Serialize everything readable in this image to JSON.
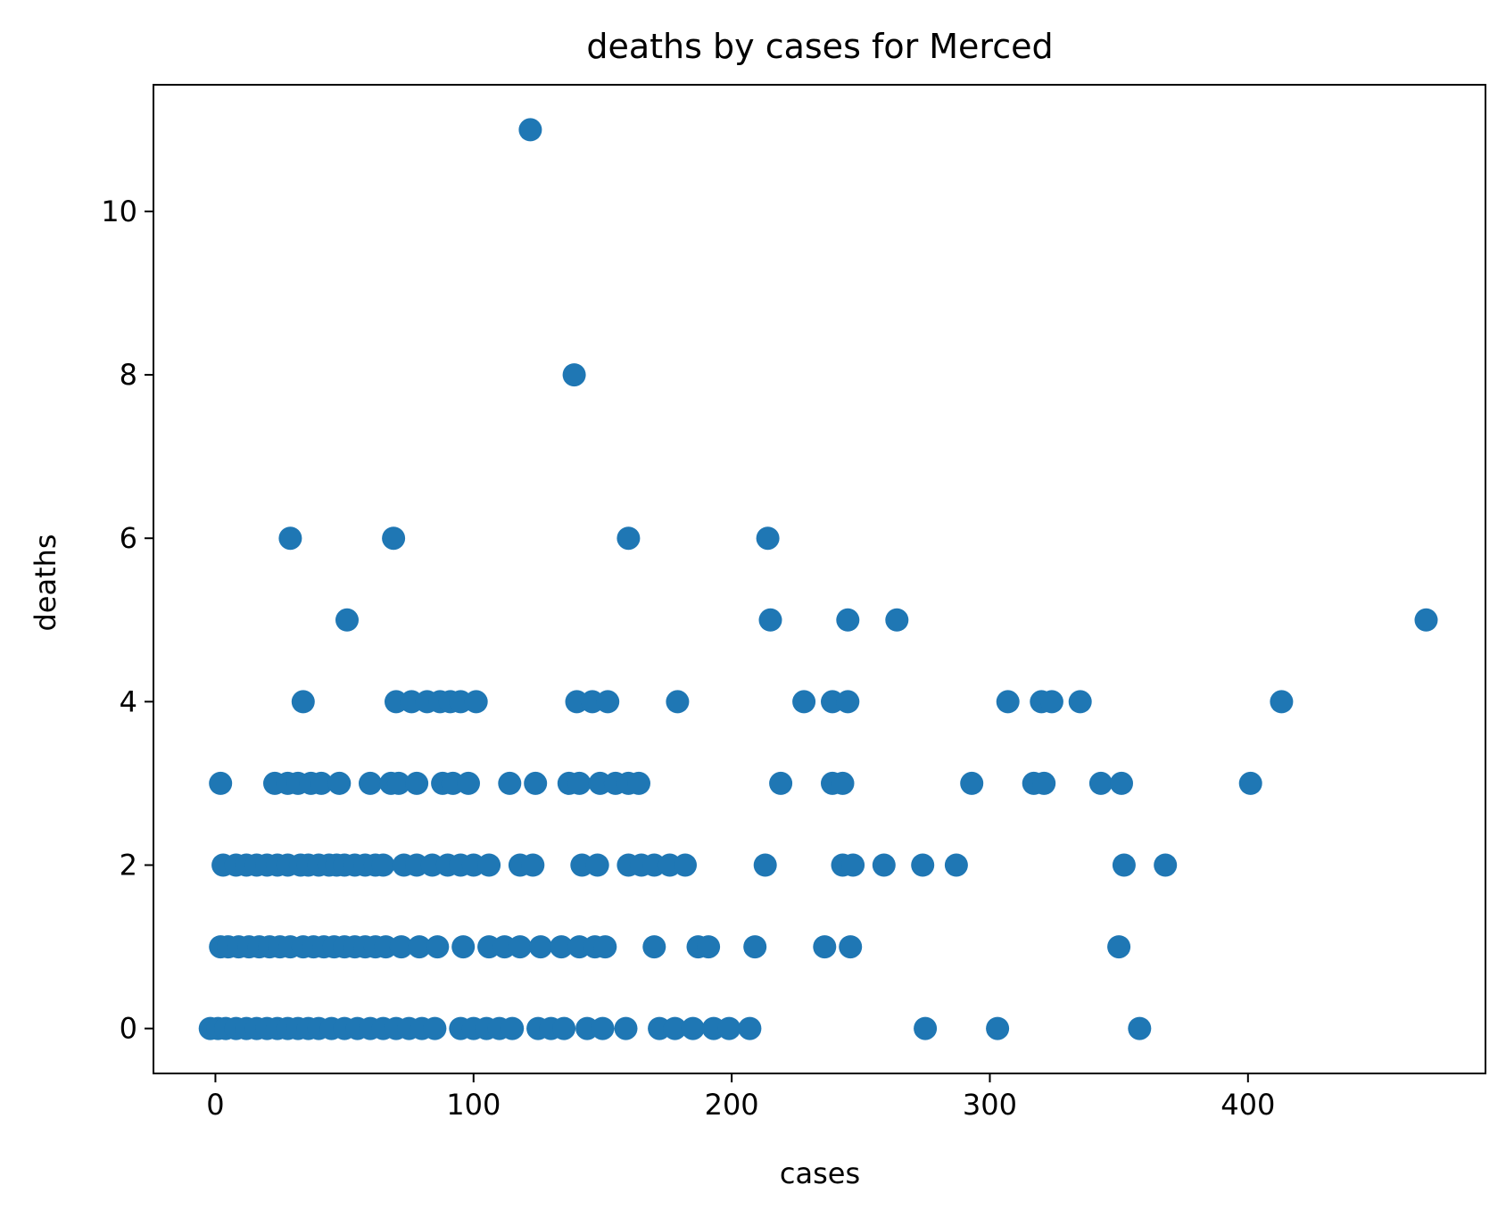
{
  "chart_data": {
    "type": "scatter",
    "title": "deaths by cases for Merced",
    "xlabel": "cases",
    "ylabel": "deaths",
    "xlim": [
      -24,
      492
    ],
    "ylim": [
      -0.55,
      11.55
    ],
    "xticks": [
      0,
      100,
      200,
      300,
      400
    ],
    "yticks": [
      0,
      2,
      4,
      6,
      8,
      10
    ],
    "grid": false,
    "legend": "none",
    "colors": {
      "marker": "#1f77b4",
      "frame": "#000000",
      "background": "#ffffff"
    },
    "series": [
      {
        "x": [
          122,
          139,
          29,
          69,
          160,
          214,
          51,
          215,
          245,
          264,
          469,
          34,
          70,
          76,
          82,
          87,
          91,
          95,
          101,
          140,
          146,
          152,
          179,
          228,
          239,
          245,
          307,
          320,
          324,
          335,
          413,
          2,
          23,
          28,
          32,
          37,
          41,
          48,
          60,
          68,
          71,
          78,
          88,
          92,
          98,
          114,
          124,
          137,
          141,
          149,
          155,
          160,
          164,
          219,
          239,
          243,
          293,
          317,
          321,
          343,
          351,
          401,
          3,
          8,
          12,
          16,
          20,
          24,
          28,
          33,
          36,
          40,
          44,
          47,
          50,
          54,
          58,
          62,
          65,
          73,
          78,
          84,
          90,
          95,
          100,
          106,
          118,
          123,
          142,
          148,
          160,
          165,
          170,
          176,
          182,
          213,
          243,
          247,
          259,
          274,
          287,
          352,
          368,
          2,
          5,
          9,
          13,
          17,
          21,
          25,
          29,
          34,
          38,
          42,
          46,
          50,
          54,
          58,
          62,
          66,
          72,
          79,
          86,
          96,
          106,
          112,
          118,
          126,
          134,
          141,
          147,
          151,
          170,
          187,
          191,
          209,
          236,
          246,
          350,
          -2,
          1,
          4,
          8,
          12,
          16,
          20,
          24,
          28,
          32,
          36,
          40,
          45,
          50,
          55,
          60,
          65,
          70,
          75,
          80,
          85,
          95,
          100,
          105,
          110,
          115,
          125,
          130,
          135,
          144,
          150,
          159,
          172,
          178,
          185,
          193,
          199,
          207,
          275,
          303,
          358
        ],
        "y": [
          11,
          8,
          6,
          6,
          6,
          6,
          5,
          5,
          5,
          5,
          5,
          4,
          4,
          4,
          4,
          4,
          4,
          4,
          4,
          4,
          4,
          4,
          4,
          4,
          4,
          4,
          4,
          4,
          4,
          4,
          4,
          3,
          3,
          3,
          3,
          3,
          3,
          3,
          3,
          3,
          3,
          3,
          3,
          3,
          3,
          3,
          3,
          3,
          3,
          3,
          3,
          3,
          3,
          3,
          3,
          3,
          3,
          3,
          3,
          3,
          3,
          3,
          2,
          2,
          2,
          2,
          2,
          2,
          2,
          2,
          2,
          2,
          2,
          2,
          2,
          2,
          2,
          2,
          2,
          2,
          2,
          2,
          2,
          2,
          2,
          2,
          2,
          2,
          2,
          2,
          2,
          2,
          2,
          2,
          2,
          2,
          2,
          2,
          2,
          2,
          2,
          2,
          2,
          1,
          1,
          1,
          1,
          1,
          1,
          1,
          1,
          1,
          1,
          1,
          1,
          1,
          1,
          1,
          1,
          1,
          1,
          1,
          1,
          1,
          1,
          1,
          1,
          1,
          1,
          1,
          1,
          1,
          1,
          1,
          1,
          1,
          1,
          1,
          1,
          0,
          0,
          0,
          0,
          0,
          0,
          0,
          0,
          0,
          0,
          0,
          0,
          0,
          0,
          0,
          0,
          0,
          0,
          0,
          0,
          0,
          0,
          0,
          0,
          0,
          0,
          0,
          0,
          0,
          0,
          0,
          0,
          0,
          0,
          0,
          0,
          0,
          0,
          0,
          0,
          0
        ]
      }
    ]
  }
}
